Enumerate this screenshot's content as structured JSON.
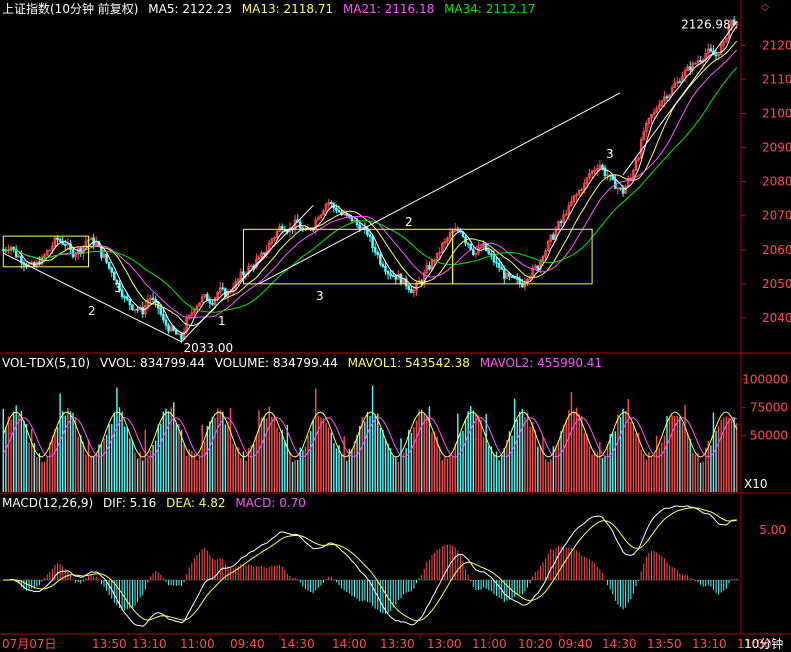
{
  "header": {
    "index_label": "上证指数(10分钟 前复权)",
    "ma5": "MA5: 2122.23",
    "ma13": "MA13: 2118.71",
    "ma21": "MA21: 2116.18",
    "ma34": "MA34: 2112.17"
  },
  "volume_header": {
    "name": "VOL-TDX(5,10)",
    "vvol": "VVOL: 834799.44",
    "volume": "VOLUME: 834799.44",
    "mavol1": "MAVOL1: 543542.38",
    "mavol2": "MAVOL2: 455990.41"
  },
  "macd_header": {
    "name": "MACD(12,26,9)",
    "dif": "DIF: 5.16",
    "dea": "DEA: 4.82",
    "macd": "MACD: 0.70"
  },
  "annotations": {
    "high_label": "2126.98",
    "low_label": "2033.00",
    "wave_labels": [
      "2",
      "3",
      "1",
      "3",
      "2",
      "3"
    ],
    "vol_multiplier": "X10",
    "period_label": "10分钟"
  },
  "colors": {
    "up": "#ff4c4c",
    "down": "#54fcfc",
    "ma5": "#ffffff",
    "ma13": "#ffff54",
    "ma21": "#ff54ff",
    "ma34": "#00e600",
    "axis": "#b00000",
    "axis_text": "#ff4c4c"
  },
  "chart_data": [
    {
      "type": "candlestick",
      "title": "上证指数(10分钟 前复权)",
      "y_ticks": [
        2040,
        2050,
        2060,
        2070,
        2080,
        2090,
        2100,
        2110,
        2120
      ],
      "ylim": [
        2030,
        2128
      ],
      "x_labels": [
        "07月07日",
        "13:50",
        "13:10",
        "11:00",
        "09:40",
        "14:30",
        "14:00",
        "13:30",
        "13:00",
        "11:00",
        "10:20",
        "09:40",
        "14:30",
        "13:50",
        "13:10",
        "11:00"
      ],
      "close_path": [
        2060,
        2061,
        2058,
        2056,
        2055,
        2057,
        2060,
        2063,
        2062,
        2059,
        2060,
        2063,
        2062,
        2058,
        2054,
        2049,
        2045,
        2043,
        2042,
        2046,
        2043,
        2038,
        2036,
        2034,
        2040,
        2044,
        2046,
        2045,
        2048,
        2047,
        2050,
        2053,
        2055,
        2057,
        2060,
        2064,
        2067,
        2066,
        2068,
        2065,
        2067,
        2071,
        2074,
        2072,
        2070,
        2069,
        2067,
        2065,
        2060,
        2056,
        2053,
        2052,
        2050,
        2048,
        2051,
        2055,
        2058,
        2062,
        2065,
        2066,
        2062,
        2059,
        2061,
        2058,
        2055,
        2052,
        2051,
        2050,
        2053,
        2055,
        2060,
        2064,
        2068,
        2072,
        2076,
        2079,
        2083,
        2085,
        2082,
        2079,
        2077,
        2081,
        2088,
        2096,
        2100,
        2104,
        2106,
        2109,
        2112,
        2114,
        2116,
        2118,
        2117,
        2120,
        2126.98
      ],
      "ma_lines": {
        "MA5": 2122.23,
        "MA13": 2118.71,
        "MA21": 2116.18,
        "MA34": 2112.17
      },
      "high": 2126.98,
      "low": 2033.0
    },
    {
      "type": "bar",
      "title": "VOL-TDX(5,10)",
      "y_ticks": [
        50000,
        75000,
        100000
      ],
      "ylim": [
        0,
        110000
      ],
      "unit": "X10",
      "volume": 834799.44,
      "mavol1": 543542.38,
      "mavol2": 455990.41
    },
    {
      "type": "line",
      "title": "MACD(12,26,9)",
      "y_ticks": [
        5.0
      ],
      "series": [
        {
          "name": "DIF",
          "last": 5.16
        },
        {
          "name": "DEA",
          "last": 4.82
        },
        {
          "name": "MACD",
          "last": 0.7
        }
      ]
    }
  ]
}
